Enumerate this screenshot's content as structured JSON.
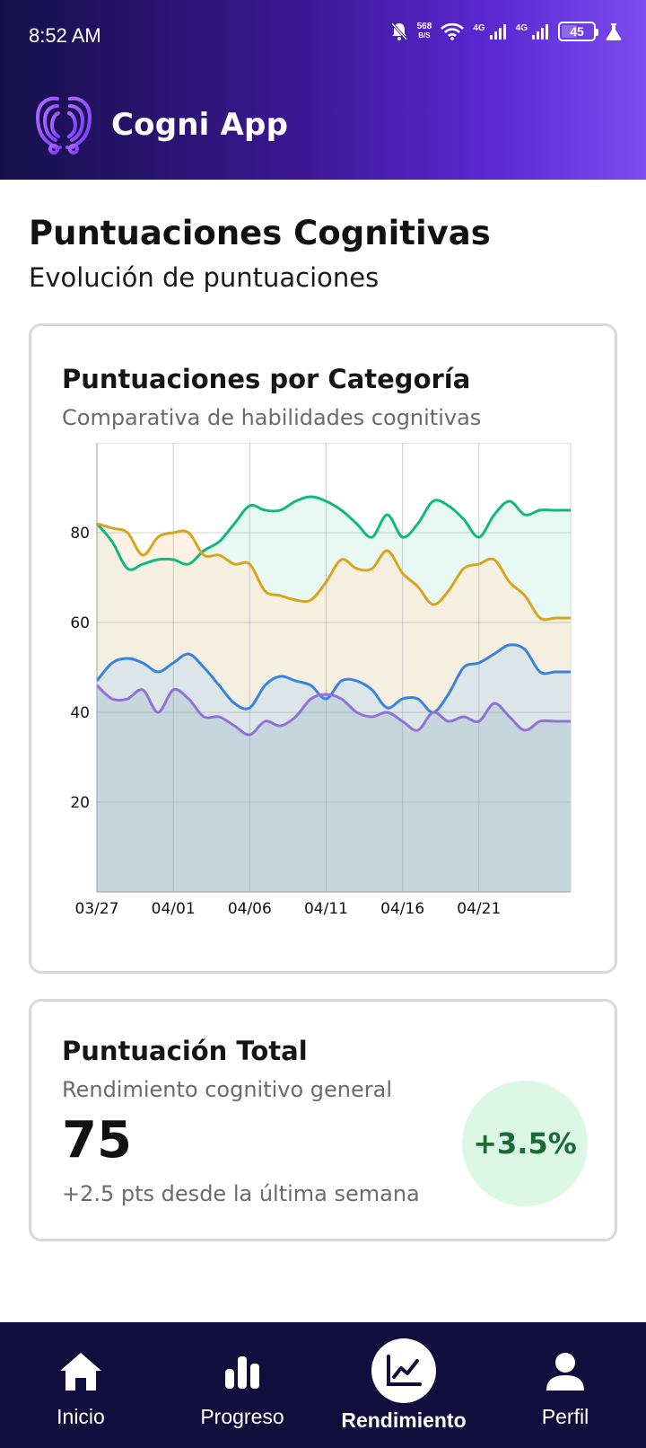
{
  "status_bar": {
    "time": "8:52 AM",
    "net_rate": "568",
    "net_unit": "B/S",
    "signal1_label": "4G",
    "signal2_label": "4G",
    "battery_level": "45",
    "icons": [
      "bell-off-icon",
      "wifi-icon",
      "signal-icon",
      "battery-icon",
      "flask-icon"
    ]
  },
  "app": {
    "name": "Cogni App",
    "logo": "brain-logo-icon"
  },
  "page": {
    "title": "Puntuaciones Cognitivas",
    "subtitle": "Evolución de puntuaciones"
  },
  "chart_card": {
    "title": "Puntuaciones por Categoría",
    "subtitle": "Comparativa de habilidades cognitivas"
  },
  "chart_data": {
    "type": "area",
    "title": "Puntuaciones por Categoría",
    "subtitle": "Comparativa de habilidades cognitivas",
    "x": [
      "03/27",
      "03/28",
      "03/29",
      "03/30",
      "03/31",
      "04/01",
      "04/02",
      "04/03",
      "04/04",
      "04/05",
      "04/06",
      "04/07",
      "04/08",
      "04/09",
      "04/10",
      "04/11",
      "04/12",
      "04/13",
      "04/14",
      "04/15",
      "04/16",
      "04/17",
      "04/18",
      "04/19",
      "04/20",
      "04/21",
      "04/22",
      "04/23",
      "04/24",
      "04/25",
      "04/26",
      "04/27"
    ],
    "x_tick_labels": [
      "03/27",
      "04/01",
      "04/06",
      "04/11",
      "04/16",
      "04/21"
    ],
    "y_tick_labels": [
      20,
      40,
      60,
      80
    ],
    "ylim": [
      0,
      100
    ],
    "grid": true,
    "series": [
      {
        "color": "#10b981",
        "fill": "#d6f3e8",
        "values": [
          82,
          78,
          72,
          73,
          74,
          74,
          73,
          76,
          78,
          82,
          86,
          85,
          85,
          87,
          88,
          87,
          85,
          82,
          79,
          84,
          79,
          82,
          87,
          86,
          83,
          79,
          84,
          87,
          84,
          85,
          85,
          85
        ]
      },
      {
        "color": "#d9a520",
        "fill": "#fde8cf",
        "values": [
          82,
          81,
          80,
          75,
          79,
          80,
          80,
          75,
          75,
          73,
          73,
          67,
          66,
          65,
          65,
          69,
          74,
          72,
          72,
          76,
          71,
          68,
          64,
          67,
          72,
          73,
          74,
          69,
          66,
          61,
          61,
          61
        ]
      },
      {
        "color": "#3b82e0",
        "fill": "#c8dff0",
        "values": [
          47,
          51,
          52,
          51,
          49,
          51,
          53,
          50,
          46,
          42,
          41,
          46,
          48,
          47,
          46,
          43,
          47,
          47,
          45,
          41,
          43,
          43,
          40,
          44,
          50,
          51,
          53,
          55,
          54,
          49,
          49,
          49
        ]
      },
      {
        "color": "#9270d6",
        "fill": "#b4c8d4",
        "values": [
          46,
          43,
          43,
          45,
          40,
          45,
          43,
          39,
          39,
          37,
          35,
          38,
          37,
          39,
          43,
          44,
          43,
          40,
          39,
          40,
          38,
          36,
          40,
          38,
          39,
          38,
          42,
          39,
          36,
          38,
          38,
          38
        ]
      }
    ]
  },
  "total_card": {
    "title": "Puntuación Total",
    "subtitle": "Rendimiento cognitivo general",
    "value": "75",
    "note": "+2.5 pts desde la última semana",
    "change": "+3.5%",
    "change_color": "#1c6a3a",
    "change_bg": "#dcf8e4"
  },
  "nav": {
    "items": [
      {
        "label": "Inicio",
        "icon": "home-icon",
        "active": false
      },
      {
        "label": "Progreso",
        "icon": "bar-chart-icon",
        "active": false
      },
      {
        "label": "Rendimiento",
        "icon": "line-chart-icon",
        "active": true
      },
      {
        "label": "Perfil",
        "icon": "user-icon",
        "active": false
      }
    ]
  }
}
